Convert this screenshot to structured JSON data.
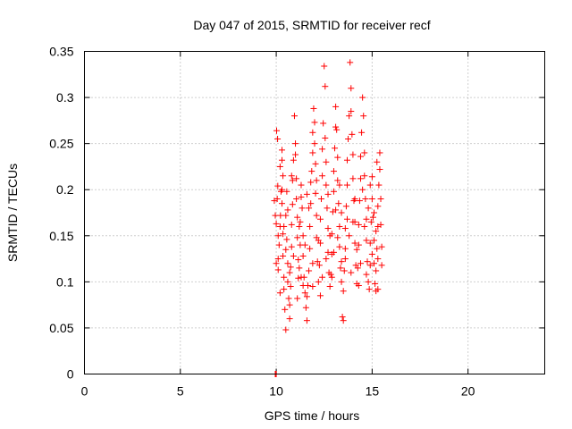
{
  "chart_data": {
    "type": "scatter",
    "title": "Day 047 of 2015, SRMTID for receiver recf",
    "xlabel": "GPS time / hours",
    "ylabel": "SRMTID / TECUs",
    "xlim": [
      0,
      24
    ],
    "ylim": [
      0,
      0.35
    ],
    "x_ticks": [
      "0",
      "5",
      "10",
      "15",
      "20"
    ],
    "y_ticks": [
      "0",
      "0.05",
      "0.1",
      "0.15",
      "0.2",
      "0.25",
      "0.3",
      "0.35"
    ],
    "grid": true,
    "marker": "plus",
    "color": "#ff0000",
    "points": [
      [
        9.95,
        0.0
      ],
      [
        9.98,
        0.0
      ],
      [
        10.0,
        0.0
      ],
      [
        9.9,
        0.188
      ],
      [
        9.95,
        0.172
      ],
      [
        10.0,
        0.163
      ],
      [
        10.0,
        0.12
      ],
      [
        10.05,
        0.19
      ],
      [
        10.08,
        0.204
      ],
      [
        10.02,
        0.264
      ],
      [
        10.07,
        0.255
      ],
      [
        10.1,
        0.15
      ],
      [
        10.1,
        0.113
      ],
      [
        10.15,
        0.14
      ],
      [
        10.2,
        0.16
      ],
      [
        10.22,
        0.172
      ],
      [
        10.25,
        0.198
      ],
      [
        10.2,
        0.225
      ],
      [
        10.3,
        0.232
      ],
      [
        10.3,
        0.243
      ],
      [
        10.35,
        0.215
      ],
      [
        10.3,
        0.185
      ],
      [
        10.35,
        0.152
      ],
      [
        10.35,
        0.128
      ],
      [
        10.4,
        0.105
      ],
      [
        10.4,
        0.092
      ],
      [
        10.45,
        0.07
      ],
      [
        10.5,
        0.048
      ],
      [
        10.5,
        0.135
      ],
      [
        10.5,
        0.172
      ],
      [
        10.55,
        0.198
      ],
      [
        10.55,
        0.146
      ],
      [
        10.6,
        0.12
      ],
      [
        10.6,
        0.1
      ],
      [
        10.65,
        0.082
      ],
      [
        10.7,
        0.06
      ],
      [
        10.7,
        0.075
      ],
      [
        10.75,
        0.095
      ],
      [
        10.75,
        0.116
      ],
      [
        10.8,
        0.138
      ],
      [
        10.8,
        0.162
      ],
      [
        10.85,
        0.184
      ],
      [
        10.85,
        0.21
      ],
      [
        10.9,
        0.232
      ],
      [
        10.95,
        0.28
      ],
      [
        11.0,
        0.25
      ],
      [
        11.0,
        0.238
      ],
      [
        11.05,
        0.212
      ],
      [
        11.05,
        0.19
      ],
      [
        11.1,
        0.17
      ],
      [
        11.1,
        0.148
      ],
      [
        11.15,
        0.124
      ],
      [
        11.15,
        0.104
      ],
      [
        11.2,
        0.115
      ],
      [
        11.25,
        0.14
      ],
      [
        11.25,
        0.165
      ],
      [
        11.3,
        0.192
      ],
      [
        11.3,
        0.205
      ],
      [
        11.35,
        0.18
      ],
      [
        11.4,
        0.15
      ],
      [
        11.4,
        0.128
      ],
      [
        11.45,
        0.105
      ],
      [
        11.5,
        0.088
      ],
      [
        11.55,
        0.072
      ],
      [
        11.6,
        0.058
      ],
      [
        11.6,
        0.084
      ],
      [
        11.65,
        0.096
      ],
      [
        11.7,
        0.112
      ],
      [
        11.75,
        0.136
      ],
      [
        11.75,
        0.16
      ],
      [
        11.8,
        0.185
      ],
      [
        11.8,
        0.208
      ],
      [
        11.85,
        0.22
      ],
      [
        11.9,
        0.24
      ],
      [
        11.9,
        0.262
      ],
      [
        11.95,
        0.288
      ],
      [
        12.0,
        0.273
      ],
      [
        12.0,
        0.25
      ],
      [
        12.05,
        0.228
      ],
      [
        12.05,
        0.196
      ],
      [
        12.1,
        0.172
      ],
      [
        12.1,
        0.148
      ],
      [
        12.15,
        0.122
      ],
      [
        12.2,
        0.1
      ],
      [
        12.25,
        0.118
      ],
      [
        12.3,
        0.142
      ],
      [
        12.3,
        0.168
      ],
      [
        12.35,
        0.19
      ],
      [
        12.4,
        0.215
      ],
      [
        12.4,
        0.244
      ],
      [
        12.45,
        0.272
      ],
      [
        12.5,
        0.334
      ],
      [
        12.55,
        0.312
      ],
      [
        12.55,
        0.256
      ],
      [
        12.6,
        0.23
      ],
      [
        12.6,
        0.205
      ],
      [
        12.65,
        0.18
      ],
      [
        12.7,
        0.158
      ],
      [
        12.7,
        0.132
      ],
      [
        12.75,
        0.11
      ],
      [
        12.8,
        0.095
      ],
      [
        12.85,
        0.108
      ],
      [
        12.9,
        0.13
      ],
      [
        12.9,
        0.152
      ],
      [
        12.95,
        0.176
      ],
      [
        13.0,
        0.198
      ],
      [
        13.0,
        0.22
      ],
      [
        13.05,
        0.245
      ],
      [
        13.1,
        0.268
      ],
      [
        13.1,
        0.29
      ],
      [
        13.15,
        0.265
      ],
      [
        13.2,
        0.235
      ],
      [
        13.2,
        0.21
      ],
      [
        13.25,
        0.185
      ],
      [
        13.3,
        0.16
      ],
      [
        13.3,
        0.138
      ],
      [
        13.35,
        0.115
      ],
      [
        13.4,
        0.1
      ],
      [
        13.45,
        0.062
      ],
      [
        13.5,
        0.058
      ],
      [
        13.5,
        0.09
      ],
      [
        13.55,
        0.112
      ],
      [
        13.6,
        0.136
      ],
      [
        13.6,
        0.158
      ],
      [
        13.65,
        0.182
      ],
      [
        13.7,
        0.205
      ],
      [
        13.7,
        0.232
      ],
      [
        13.75,
        0.255
      ],
      [
        13.8,
        0.28
      ],
      [
        13.85,
        0.338
      ],
      [
        13.9,
        0.31
      ],
      [
        13.9,
        0.285
      ],
      [
        13.95,
        0.26
      ],
      [
        14.0,
        0.238
      ],
      [
        14.0,
        0.212
      ],
      [
        14.05,
        0.188
      ],
      [
        14.1,
        0.165
      ],
      [
        14.1,
        0.142
      ],
      [
        14.15,
        0.118
      ],
      [
        14.2,
        0.098
      ],
      [
        14.25,
        0.115
      ],
      [
        14.3,
        0.14
      ],
      [
        14.3,
        0.162
      ],
      [
        14.35,
        0.188
      ],
      [
        14.4,
        0.212
      ],
      [
        14.4,
        0.236
      ],
      [
        14.45,
        0.262
      ],
      [
        14.5,
        0.3
      ],
      [
        14.55,
        0.28
      ],
      [
        14.6,
        0.24
      ],
      [
        14.6,
        0.215
      ],
      [
        14.65,
        0.19
      ],
      [
        14.7,
        0.168
      ],
      [
        14.7,
        0.145
      ],
      [
        14.75,
        0.122
      ],
      [
        14.8,
        0.1
      ],
      [
        14.85,
        0.092
      ],
      [
        14.9,
        0.118
      ],
      [
        14.9,
        0.142
      ],
      [
        14.95,
        0.165
      ],
      [
        15.0,
        0.19
      ],
      [
        15.0,
        0.214
      ],
      [
        15.05,
        0.17
      ],
      [
        15.1,
        0.145
      ],
      [
        15.1,
        0.12
      ],
      [
        15.15,
        0.098
      ],
      [
        15.2,
        0.09
      ],
      [
        15.2,
        0.112
      ],
      [
        15.25,
        0.136
      ],
      [
        15.3,
        0.16
      ],
      [
        15.3,
        0.182
      ],
      [
        15.35,
        0.205
      ],
      [
        15.4,
        0.24
      ],
      [
        15.4,
        0.222
      ],
      [
        15.45,
        0.19
      ],
      [
        15.45,
        0.162
      ],
      [
        15.5,
        0.138
      ],
      [
        15.5,
        0.118
      ],
      [
        15.3,
        0.092
      ],
      [
        15.25,
        0.23
      ],
      [
        10.1,
        0.125
      ],
      [
        10.4,
        0.16
      ],
      [
        10.6,
        0.178
      ],
      [
        10.9,
        0.128
      ],
      [
        11.2,
        0.16
      ],
      [
        11.5,
        0.14
      ],
      [
        11.7,
        0.18
      ],
      [
        11.9,
        0.12
      ],
      [
        12.2,
        0.145
      ],
      [
        12.4,
        0.105
      ],
      [
        12.6,
        0.125
      ],
      [
        12.8,
        0.15
      ],
      [
        13.0,
        0.132
      ],
      [
        13.2,
        0.148
      ],
      [
        13.4,
        0.175
      ],
      [
        13.6,
        0.125
      ],
      [
        13.8,
        0.15
      ],
      [
        14.0,
        0.165
      ],
      [
        14.2,
        0.135
      ],
      [
        14.4,
        0.12
      ],
      [
        14.6,
        0.16
      ],
      [
        14.8,
        0.18
      ],
      [
        15.0,
        0.13
      ],
      [
        15.2,
        0.155
      ],
      [
        10.3,
        0.2
      ],
      [
        10.8,
        0.215
      ],
      [
        11.3,
        0.105
      ],
      [
        11.6,
        0.195
      ],
      [
        12.1,
        0.21
      ],
      [
        12.7,
        0.195
      ],
      [
        13.1,
        0.178
      ],
      [
        13.3,
        0.205
      ],
      [
        13.7,
        0.168
      ],
      [
        14.1,
        0.19
      ],
      [
        14.5,
        0.2
      ],
      [
        14.9,
        0.205
      ],
      [
        15.1,
        0.175
      ],
      [
        10.2,
        0.088
      ],
      [
        10.7,
        0.11
      ],
      [
        11.1,
        0.082
      ],
      [
        11.4,
        0.096
      ],
      [
        11.9,
        0.095
      ],
      [
        12.3,
        0.085
      ],
      [
        12.9,
        0.105
      ],
      [
        13.4,
        0.122
      ],
      [
        13.9,
        0.11
      ],
      [
        14.3,
        0.096
      ],
      [
        14.7,
        0.108
      ],
      [
        15.3,
        0.125
      ]
    ]
  }
}
